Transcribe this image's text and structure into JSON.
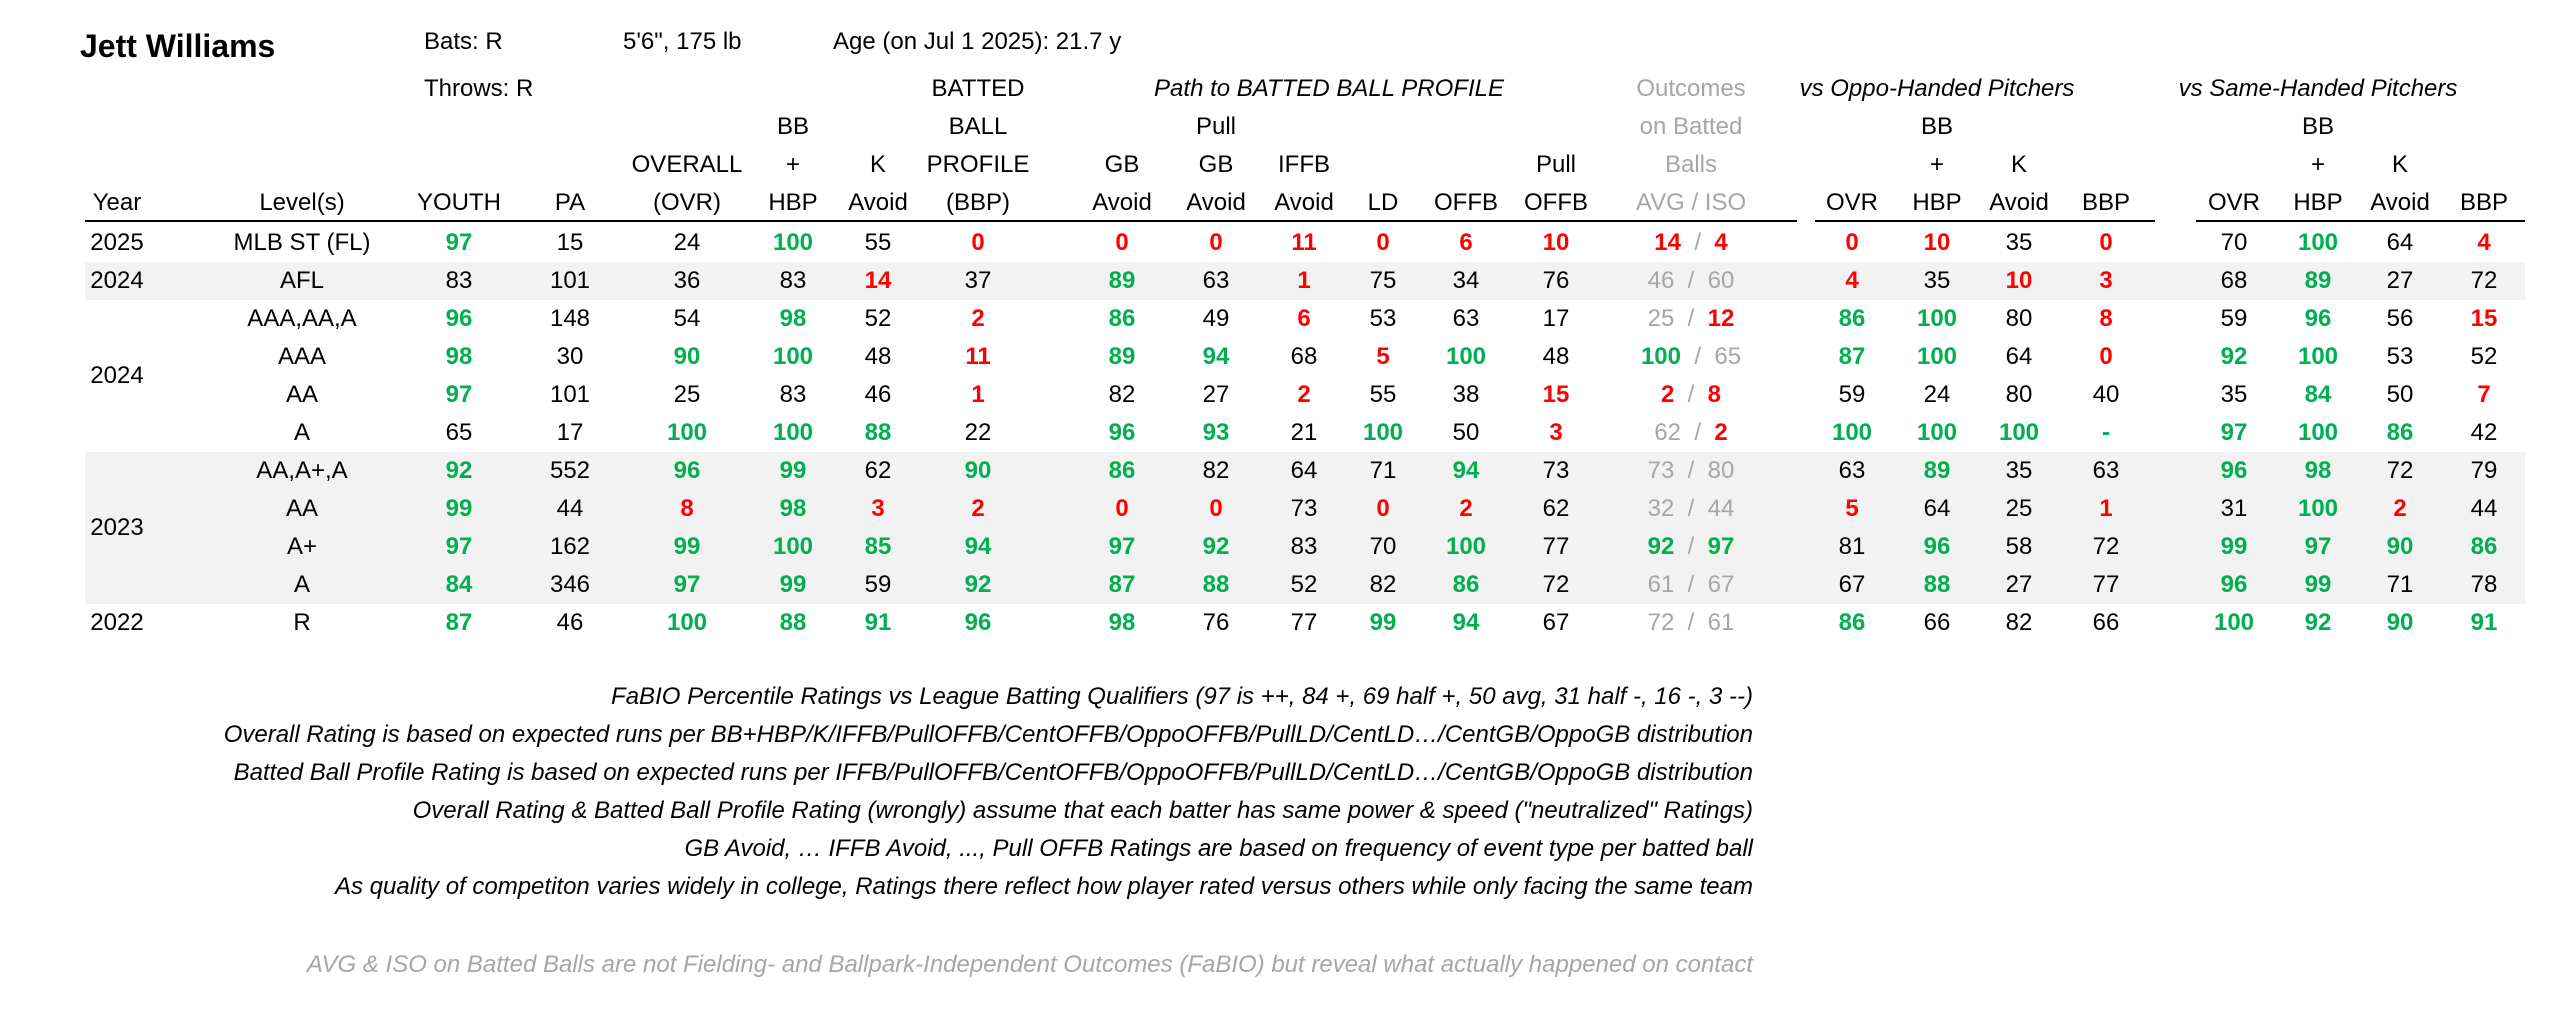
{
  "player": {
    "name": "Jett Williams",
    "bats": "Bats: R",
    "throws": "Throws: R",
    "size": "5'6\", 175 lb",
    "age": "Age (on Jul 1 2025): 21.7 y"
  },
  "group_headers": {
    "bbp_top": "BATTED",
    "path": "Path to BATTED BALL PROFILE",
    "outcomes": [
      "Outcomes",
      "on Batted",
      "Balls"
    ],
    "vs_oppo": "vs Oppo-Handed Pitchers",
    "vs_same": "vs Same-Handed Pitchers"
  },
  "columns": [
    {
      "key": "year",
      "lines": [
        "Year"
      ]
    },
    {
      "key": "level",
      "lines": [
        "Level(s)"
      ]
    },
    {
      "key": "youth",
      "lines": [
        "YOUTH"
      ]
    },
    {
      "key": "pa",
      "lines": [
        "PA"
      ]
    },
    {
      "key": "ovr",
      "lines": [
        "OVERALL",
        "(OVR)"
      ]
    },
    {
      "key": "bbhbp",
      "lines": [
        "BB",
        "+",
        "HBP"
      ]
    },
    {
      "key": "kavoid",
      "lines": [
        "K",
        "Avoid"
      ]
    },
    {
      "key": "bbp",
      "lines": [
        "BALL",
        "PROFILE",
        "(BBP)"
      ]
    },
    {
      "key": "gbavoid",
      "lines": [
        "GB",
        "Avoid"
      ]
    },
    {
      "key": "pullgb",
      "lines": [
        "Pull",
        "GB",
        "Avoid"
      ]
    },
    {
      "key": "iffb",
      "lines": [
        "IFFB",
        "Avoid"
      ]
    },
    {
      "key": "ld",
      "lines": [
        "LD"
      ]
    },
    {
      "key": "offb",
      "lines": [
        "OFFB"
      ]
    },
    {
      "key": "pulloffb",
      "lines": [
        "Pull",
        "OFFB"
      ]
    },
    {
      "key": "avgiso",
      "lines": [
        "AVG  /  ISO"
      ]
    },
    {
      "key": "o_ovr",
      "lines": [
        "OVR"
      ]
    },
    {
      "key": "o_bb",
      "lines": [
        "BB",
        "+",
        "HBP"
      ]
    },
    {
      "key": "o_k",
      "lines": [
        "K",
        "Avoid"
      ]
    },
    {
      "key": "o_bbp",
      "lines": [
        "BBP"
      ]
    },
    {
      "key": "s_ovr",
      "lines": [
        "OVR"
      ]
    },
    {
      "key": "s_bb",
      "lines": [
        "BB",
        "+",
        "HBP"
      ]
    },
    {
      "key": "s_k",
      "lines": [
        "K",
        "Avoid"
      ]
    },
    {
      "key": "s_bbp",
      "lines": [
        "BBP"
      ]
    }
  ],
  "colors": {
    "good": "#00b050",
    "bad": "#ff0000",
    "muted": "#a6a6a6",
    "shade": "#f2f2f2"
  },
  "rows": [
    {
      "level": "MLB ST (FL)",
      "cells": [
        "97",
        "15",
        "24",
        "100",
        "55",
        "0",
        "0",
        "0",
        "11",
        "0",
        "6",
        "10",
        "14",
        "4",
        "0",
        "10",
        "35",
        "0",
        "70",
        "100",
        "64",
        "4"
      ]
    },
    {
      "level": "AFL",
      "cells": [
        "83",
        "101",
        "36",
        "83",
        "14",
        "37",
        "89",
        "63",
        "1",
        "75",
        "34",
        "76",
        "46",
        "60",
        "4",
        "35",
        "10",
        "3",
        "68",
        "89",
        "27",
        "72"
      ]
    },
    {
      "level": "AAA,AA,A",
      "cells": [
        "96",
        "148",
        "54",
        "98",
        "52",
        "2",
        "86",
        "49",
        "6",
        "53",
        "63",
        "17",
        "25",
        "12",
        "86",
        "100",
        "80",
        "8",
        "59",
        "96",
        "56",
        "15"
      ]
    },
    {
      "level": "AAA",
      "cells": [
        "98",
        "30",
        "90",
        "100",
        "48",
        "11",
        "89",
        "94",
        "68",
        "5",
        "100",
        "48",
        "100",
        "65",
        "87",
        "100",
        "64",
        "0",
        "92",
        "100",
        "53",
        "52"
      ]
    },
    {
      "level": "AA",
      "cells": [
        "97",
        "101",
        "25",
        "83",
        "46",
        "1",
        "82",
        "27",
        "2",
        "55",
        "38",
        "15",
        "2",
        "8",
        "59",
        "24",
        "80",
        "40",
        "35",
        "84",
        "50",
        "7"
      ]
    },
    {
      "level": "A",
      "cells": [
        "65",
        "17",
        "100",
        "100",
        "88",
        "22",
        "96",
        "93",
        "21",
        "100",
        "50",
        "3",
        "62",
        "2",
        "100",
        "100",
        "100",
        "-",
        "97",
        "100",
        "86",
        "42"
      ]
    },
    {
      "level": "AA,A+,A",
      "cells": [
        "92",
        "552",
        "96",
        "99",
        "62",
        "90",
        "86",
        "82",
        "64",
        "71",
        "94",
        "73",
        "73",
        "80",
        "63",
        "89",
        "35",
        "63",
        "96",
        "98",
        "72",
        "79"
      ]
    },
    {
      "level": "AA",
      "cells": [
        "99",
        "44",
        "8",
        "98",
        "3",
        "2",
        "0",
        "0",
        "73",
        "0",
        "2",
        "62",
        "32",
        "44",
        "5",
        "64",
        "25",
        "1",
        "31",
        "100",
        "2",
        "44"
      ]
    },
    {
      "level": "A+",
      "cells": [
        "97",
        "162",
        "99",
        "100",
        "85",
        "94",
        "97",
        "92",
        "83",
        "70",
        "100",
        "77",
        "92",
        "97",
        "81",
        "96",
        "58",
        "72",
        "99",
        "97",
        "90",
        "86"
      ]
    },
    {
      "level": "A",
      "cells": [
        "84",
        "346",
        "97",
        "99",
        "59",
        "92",
        "87",
        "88",
        "52",
        "82",
        "86",
        "72",
        "61",
        "67",
        "67",
        "88",
        "27",
        "77",
        "96",
        "99",
        "71",
        "78"
      ]
    },
    {
      "level": "R",
      "cells": [
        "87",
        "46",
        "100",
        "88",
        "91",
        "96",
        "98",
        "76",
        "77",
        "99",
        "94",
        "67",
        "72",
        "61",
        "86",
        "66",
        "82",
        "66",
        "100",
        "92",
        "90",
        "91"
      ]
    }
  ],
  "year_groups": [
    {
      "year": "2025",
      "rows": [
        0
      ]
    },
    {
      "year": "2024",
      "rows": [
        1
      ]
    },
    {
      "year": "2024",
      "rows": [
        2,
        3,
        4,
        5
      ]
    },
    {
      "year": "2023",
      "rows": [
        6,
        7,
        8,
        9
      ]
    },
    {
      "year": "2022",
      "rows": [
        10
      ]
    }
  ],
  "notes": [
    "FaBIO Percentile Ratings vs League Batting Qualifiers (97 is ++, 84 +, 69 half +, 50 avg, 31 half -, 16 -, 3 --)",
    "Overall Rating is based on expected runs per BB+HBP/K/IFFB/PullOFFB/CentOFFB/OppoOFFB/PullLD/CentLD…/CentGB/OppoGB distribution",
    "Batted Ball Profile Rating is based on expected runs per IFFB/PullOFFB/CentOFFB/OppoOFFB/PullLD/CentLD…/CentGB/OppoGB distribution",
    "Overall Rating & Batted Ball Profile Rating (wrongly) assume that each batter has same power & speed (\"neutralized\" Ratings)",
    "GB Avoid, … IFFB Avoid, ..., Pull OFFB Ratings are based on frequency of event type per batted ball",
    "As quality of competiton varies widely in college, Ratings there reflect how player rated versus others while only facing the same team"
  ],
  "footnote": "AVG & ISO on Batted Balls are not Fielding- and Ballpark-Independent Outcomes (FaBIO) but reveal what actually happened on contact"
}
